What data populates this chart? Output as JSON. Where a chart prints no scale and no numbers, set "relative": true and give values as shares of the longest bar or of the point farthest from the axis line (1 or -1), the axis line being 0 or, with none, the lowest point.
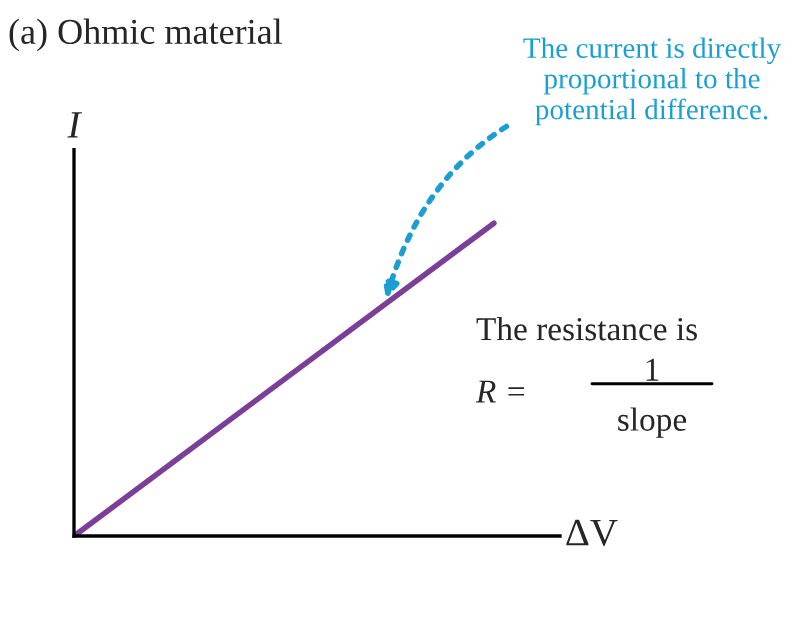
{
  "chart_data": {
    "type": "line",
    "title": "(a) Ohmic material",
    "xlabel": "ΔV",
    "ylabel": "I",
    "relative": true,
    "categories": [
      null,
      null
    ],
    "series": [
      {
        "color": "#7b3f98",
        "values": [
          0,
          1
        ]
      }
    ],
    "annotations": [
      "The current is directly\nproportional to the\npotential difference.",
      "The resistance is",
      "R =",
      "1",
      "slope"
    ]
  }
}
